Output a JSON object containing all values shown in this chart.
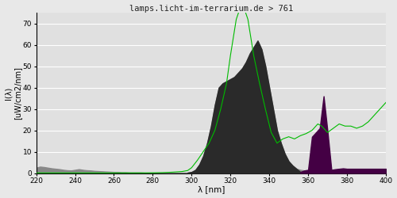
{
  "title": "lamps.licht-im-terrarium.de > 761",
  "xlabel": "λ [nm]",
  "ylabel": "I(λ)\n[uW/cm2/nm]",
  "xlim": [
    220,
    400
  ],
  "ylim": [
    0,
    75
  ],
  "yticks": [
    0,
    10,
    20,
    30,
    40,
    50,
    60,
    70
  ],
  "xticks": [
    220,
    240,
    260,
    280,
    300,
    320,
    340,
    360,
    380,
    400
  ],
  "bg_color": "#e8e8e8",
  "plot_bg_color": "#e0e0e0",
  "grid_color": "#ffffff",
  "gray_color": "#888888",
  "dark_color": "#2a2a2a",
  "purple_color": "#440044",
  "green_line_color": "#00bb00",
  "gray_x": [
    220,
    222,
    224,
    226,
    228,
    230,
    232,
    234,
    236,
    238,
    240,
    242,
    244,
    246,
    248,
    250,
    252,
    254,
    256,
    258,
    260,
    262,
    264,
    266,
    268,
    270,
    272,
    274,
    276,
    278,
    280,
    282,
    284,
    286,
    288,
    290,
    292,
    294,
    296,
    298,
    300,
    302,
    304,
    306,
    308,
    310,
    312,
    314,
    316,
    318,
    320,
    322,
    324,
    326,
    328,
    330,
    332,
    334,
    336,
    338,
    340,
    342,
    344,
    346,
    348,
    350,
    352,
    354,
    356,
    358,
    360,
    362,
    364,
    366,
    368,
    370
  ],
  "gray_y": [
    2.5,
    3.0,
    2.8,
    2.5,
    2.2,
    2.0,
    1.8,
    1.5,
    1.3,
    1.2,
    1.5,
    1.8,
    1.5,
    1.3,
    1.2,
    1.0,
    0.9,
    0.8,
    0.7,
    0.6,
    0.5,
    0.5,
    0.4,
    0.4,
    0.3,
    0.3,
    0.3,
    0.3,
    0.2,
    0.2,
    0.2,
    0.2,
    0.2,
    0.2,
    0.2,
    0.2,
    0.2,
    0.2,
    0.2,
    0.2,
    0.5,
    1.5,
    4.0,
    8.0,
    14.0,
    22.0,
    32.0,
    40.0,
    42.0,
    43.0,
    44.0,
    45.0,
    47.0,
    49.0,
    52.0,
    56.0,
    59.0,
    62.0,
    58.0,
    50.0,
    40.0,
    30.0,
    20.0,
    14.0,
    9.0,
    5.5,
    3.5,
    2.0,
    1.5,
    1.2,
    1.0,
    0.8,
    0.6,
    0.4,
    0.3,
    0.2
  ],
  "dark_x": [
    298,
    300,
    302,
    304,
    306,
    308,
    310,
    312,
    314,
    316,
    318,
    320,
    322,
    324,
    326,
    328,
    330,
    332,
    334,
    336,
    338,
    340,
    342,
    344,
    346,
    348,
    350,
    352,
    354,
    356
  ],
  "dark_y": [
    0.2,
    0.5,
    1.5,
    4.0,
    8.0,
    14.0,
    22.0,
    32.0,
    40.0,
    42.0,
    43.0,
    44.0,
    45.0,
    47.0,
    49.0,
    52.0,
    56.0,
    59.0,
    62.0,
    58.0,
    50.0,
    40.0,
    30.0,
    20.0,
    14.0,
    9.0,
    5.5,
    3.5,
    2.0,
    0.5
  ],
  "purple_x": [
    356,
    358,
    360,
    362,
    364,
    366,
    368,
    370,
    372,
    374,
    376,
    378,
    380,
    382,
    384,
    386,
    388,
    390,
    392,
    394,
    396,
    398,
    400
  ],
  "purple_y": [
    0.5,
    1.2,
    1.5,
    17.0,
    19.0,
    21.0,
    36.0,
    19.5,
    1.5,
    1.8,
    2.0,
    2.2,
    2.0,
    2.0,
    2.0,
    2.0,
    2.0,
    2.0,
    2.0,
    2.0,
    2.0,
    2.0,
    2.0
  ],
  "green_x": [
    220,
    225,
    230,
    235,
    240,
    245,
    250,
    255,
    260,
    265,
    270,
    275,
    280,
    285,
    290,
    295,
    298,
    300,
    303,
    306,
    309,
    312,
    315,
    318,
    320,
    323,
    326,
    329,
    332,
    335,
    338,
    341,
    344,
    347,
    350,
    353,
    356,
    359,
    362,
    365,
    367,
    370,
    373,
    376,
    379,
    382,
    385,
    388,
    391,
    394,
    397,
    400
  ],
  "green_y": [
    0.05,
    0.05,
    0.05,
    0.05,
    0.05,
    0.05,
    0.05,
    0.05,
    0.05,
    0.05,
    0.05,
    0.05,
    0.1,
    0.2,
    0.4,
    0.7,
    1.2,
    2.5,
    6.0,
    10.0,
    14.0,
    20.0,
    30.0,
    42.0,
    55.0,
    72.0,
    80.0,
    72.0,
    55.0,
    42.0,
    30.0,
    19.0,
    14.0,
    16.0,
    17.0,
    16.0,
    17.5,
    18.5,
    20.0,
    23.0,
    22.0,
    19.0,
    21.0,
    23.0,
    22.0,
    22.0,
    21.0,
    22.0,
    24.0,
    27.0,
    30.0,
    33.0
  ]
}
